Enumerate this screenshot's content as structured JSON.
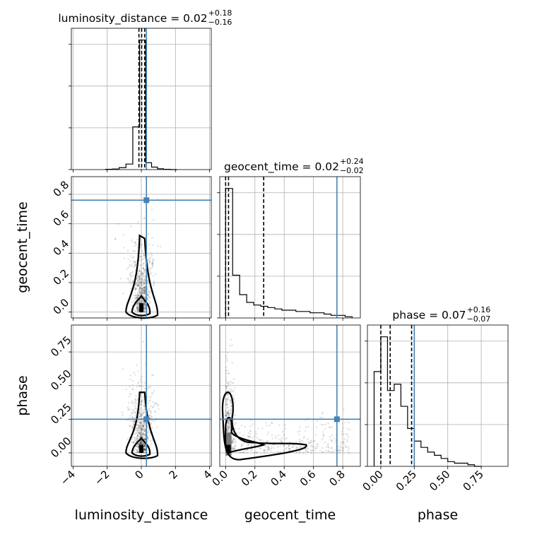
{
  "chart_data": {
    "type": "corner",
    "parameters": [
      "luminosity_distance",
      "geocent_time",
      "phase"
    ],
    "injection": {
      "luminosity_distance": 0.3,
      "geocent_time": 0.76,
      "phase": 0.25
    },
    "truth_color": "#4682b4",
    "titles": [
      {
        "param": "luminosity_distance",
        "median": "0.02",
        "plus": "+0.18",
        "minus": "−0.16"
      },
      {
        "param": "geocent_time",
        "median": "0.02",
        "plus": "+0.24",
        "minus": "−0.02"
      },
      {
        "param": "phase",
        "median": "0.07",
        "plus": "+0.16",
        "minus": "−0.07"
      }
    ],
    "ranges": {
      "luminosity_distance": [
        -4.1,
        4.1
      ],
      "geocent_time": [
        -0.04,
        0.92
      ],
      "phase": [
        -0.1,
        0.95
      ]
    },
    "ticks": {
      "luminosity_distance": [
        -4,
        -2,
        0,
        2,
        4
      ],
      "geocent_time": [
        0.0,
        0.2,
        0.4,
        0.6,
        0.8
      ],
      "phase": [
        0.0,
        0.25,
        0.5,
        0.75
      ]
    },
    "tick_labels": {
      "luminosity_distance": [
        "−4",
        "−2",
        "0",
        "2",
        "4"
      ],
      "geocent_time": [
        "0.0",
        "0.2",
        "0.4",
        "0.6",
        "0.8"
      ],
      "phase": [
        "0.00",
        "0.25",
        "0.50",
        "0.75"
      ]
    },
    "quantiles": {
      "luminosity_distance": [
        -0.14,
        0.02,
        0.2
      ],
      "geocent_time": [
        0.0,
        0.02,
        0.26
      ],
      "phase": [
        0.0,
        0.07,
        0.23
      ]
    },
    "histograms": {
      "luminosity_distance": {
        "bins": [
          -2.1,
          -1.7,
          -1.3,
          -0.9,
          -0.5,
          -0.1,
          0.25,
          0.6,
          0.95,
          1.3,
          1.7,
          2.1
        ],
        "counts": [
          1,
          2,
          7,
          20,
          155,
          470,
          25,
          9,
          3,
          1,
          0
        ]
      },
      "geocent_time": {
        "bins": [
          0.0,
          0.048,
          0.096,
          0.144,
          0.192,
          0.24,
          0.288,
          0.336,
          0.384,
          0.432,
          0.48,
          0.528,
          0.576,
          0.624,
          0.672,
          0.72,
          0.768,
          0.816,
          0.864
        ],
        "counts": [
          100,
          33,
          18,
          12,
          10,
          9,
          8,
          7,
          6,
          6,
          5,
          5,
          4,
          4,
          3,
          2,
          2,
          1
        ]
      },
      "phase": {
        "bins": [
          -0.05,
          0.0,
          0.05,
          0.1,
          0.15,
          0.2,
          0.25,
          0.3,
          0.35,
          0.4,
          0.45,
          0.5,
          0.55,
          0.6,
          0.65,
          0.7,
          0.75
        ],
        "counts": [
          60,
          82,
          48,
          52,
          38,
          24,
          16,
          12,
          9,
          7,
          5,
          3,
          2,
          2,
          1,
          0
        ]
      }
    }
  }
}
